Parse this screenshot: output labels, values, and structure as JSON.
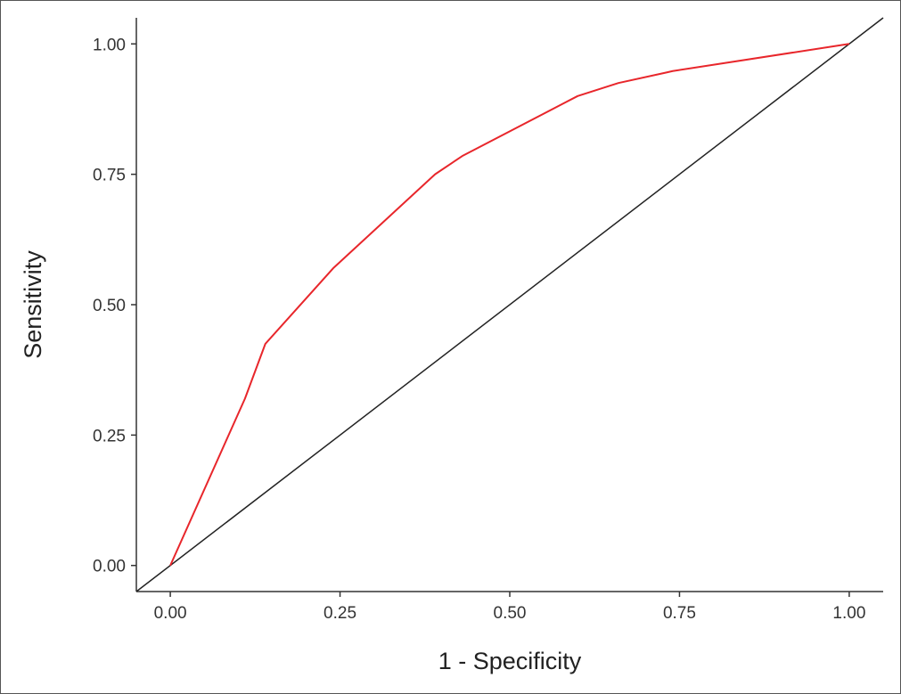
{
  "chart_data": {
    "type": "line",
    "xlabel": "1 - Specificity",
    "ylabel": "Sensitivity",
    "xlim": [
      -0.05,
      1.05
    ],
    "ylim": [
      -0.05,
      1.05
    ],
    "x_ticks": [
      "0.00",
      "0.25",
      "0.50",
      "0.75",
      "1.00"
    ],
    "y_ticks": [
      "0.00",
      "0.25",
      "0.50",
      "0.75",
      "1.00"
    ],
    "grid": false,
    "series": [
      {
        "color": "#e8262b",
        "x": [
          0.0,
          0.11,
          0.14,
          0.24,
          0.39,
          0.43,
          0.6,
          0.66,
          0.73,
          0.74,
          1.0
        ],
        "y": [
          0.0,
          0.32,
          0.425,
          0.57,
          0.75,
          0.785,
          0.9,
          0.925,
          0.945,
          0.948,
          1.0
        ]
      },
      {
        "color": "#222222",
        "x": [
          -0.05,
          1.05
        ],
        "y": [
          -0.05,
          1.05
        ]
      }
    ]
  }
}
